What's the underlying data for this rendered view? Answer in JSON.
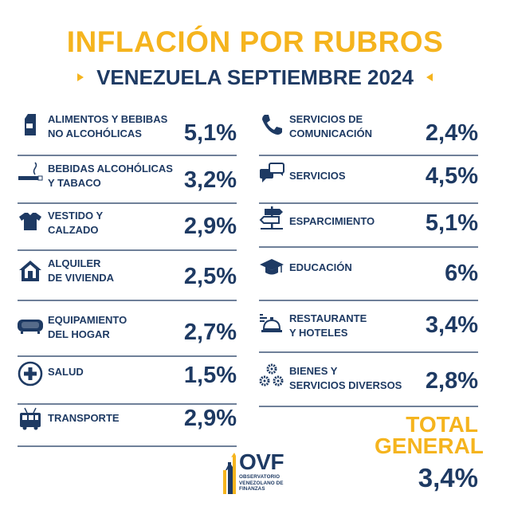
{
  "title": "INFLACIÓN POR RUBROS",
  "subtitle": "VENEZUELA SEPTIEMBRE 2024",
  "colors": {
    "navy": "#1e3a63",
    "gold": "#f5b41e",
    "rule": "#6f8099"
  },
  "items": [
    {
      "icon": "milk-carton-icon",
      "label": "ALIMENTOS Y BEBIBAS\nNO ALCOHÓLICAS",
      "value": "5,1%"
    },
    {
      "icon": "cigarette-icon",
      "label": "BEBIDAS ALCOHÓLICAS\nY TABACO",
      "value": "3,2%"
    },
    {
      "icon": "tshirt-icon",
      "label": "VESTIDO Y\nCALZADO",
      "value": "2,9%"
    },
    {
      "icon": "house-icon",
      "label": "ALQUILER\nDE VIVIENDA",
      "value": "2,5%"
    },
    {
      "icon": "sofa-icon",
      "label": "EQUIPAMIENTO\nDEL HOGAR",
      "value": "2,7%"
    },
    {
      "icon": "health-cross-icon",
      "label": "SALUD",
      "value": "1,5%"
    },
    {
      "icon": "bus-icon",
      "label": "TRANSPORTE",
      "value": "2,9%"
    },
    {
      "icon": "phone-icon",
      "label": "SERVICIOS DE\nCOMUNICACIÓN",
      "value": "2,4%"
    },
    {
      "icon": "chat-bubbles-icon",
      "label": "SERVICIOS",
      "value": "4,5%"
    },
    {
      "icon": "signpost-icon",
      "label": "ESPARCIMIENTO",
      "value": "5,1%"
    },
    {
      "icon": "graduation-cap-icon",
      "label": "EDUCACIÓN",
      "value": "6%"
    },
    {
      "icon": "service-bell-icon",
      "label": "RESTAURANTE\nY HOTELES",
      "value": "3,4%"
    },
    {
      "icon": "gears-icon",
      "label": "BIENES Y\nSERVICIOS DIVERSOS",
      "value": "2,8%"
    }
  ],
  "total": {
    "label": "TOTAL\nGENERAL",
    "value": "3,4%"
  },
  "logo": {
    "mark": "OVF",
    "tagline": "OBSERVATORIO\nVENEZOLANO DE\nFINANZAS"
  }
}
